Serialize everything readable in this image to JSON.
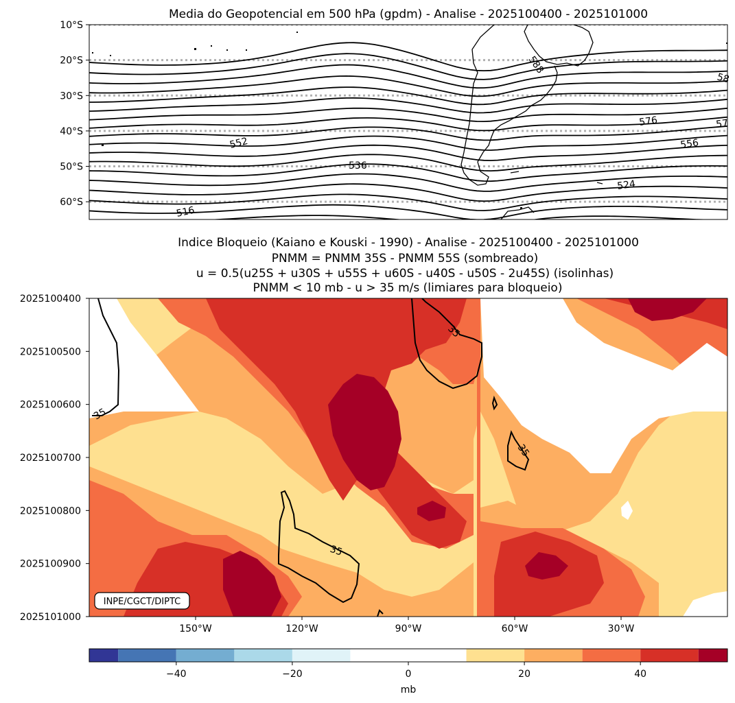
{
  "chart_data": [
    {
      "type": "contour-map",
      "title": "Media do Geopotencial em 500 hPa (gpdm) - Analise - 2025100400 - 2025101000",
      "variable": "Geopotencial 500 hPa (gpdm)",
      "lat_ticks": [
        "10°S",
        "20°S",
        "30°S",
        "40°S",
        "50°S",
        "60°S"
      ],
      "lat_values": [
        -10,
        -20,
        -30,
        -40,
        -50,
        -60
      ],
      "lat_range": [
        -65,
        -10
      ],
      "lon_range": [
        -180,
        0
      ],
      "gridlines": "dotted gray at each 10° latitude",
      "contour_interval": 4,
      "contour_range": [
        508,
        588
      ],
      "contour_labels": [
        "588",
        "58",
        "576",
        "57",
        "552",
        "556",
        "536",
        "524",
        "516"
      ]
    },
    {
      "type": "heatmap",
      "title_lines": [
        "Indice Bloqueio (Kaiano e Kouski - 1990) - Analise - 2025100400 - 2025101000",
        "PNMM = PNMM 35S - PNMM 55S (sombreado)",
        "u = 0.5(u25S + u30S + u55S + u60S - u40S - u50S - 2u45S) (isolinhas)",
        "PNMM < 10 mb - u > 35 m/s (limiares para bloqueio)"
      ],
      "y_ticks": [
        "2025100400",
        "2025100500",
        "2025100600",
        "2025100700",
        "2025100800",
        "2025100900",
        "2025101000"
      ],
      "x_ticks": [
        "150°W",
        "120°W",
        "90°W",
        "60°W",
        "30°W"
      ],
      "x_tick_values": [
        -150,
        -120,
        -90,
        -60,
        -30
      ],
      "x_range": [
        -180,
        0
      ],
      "contour_value": 35,
      "contour_labels": [
        "35",
        "35",
        "35",
        "35"
      ],
      "credit": "INPE/CGCT/DIPTC"
    },
    {
      "type": "colorbar",
      "label": "mb",
      "boundaries": [
        -55,
        -50,
        -40,
        -30,
        -20,
        -10,
        10,
        20,
        30,
        40,
        50,
        55
      ],
      "colors": [
        "#313695",
        "#4575b4",
        "#74add1",
        "#abd9e9",
        "#e0f3f8",
        "#ffffff",
        "#fee090",
        "#fdae61",
        "#f46d43",
        "#d73027",
        "#a50026"
      ],
      "ticks": [
        "−40",
        "−20",
        "0",
        "20",
        "40"
      ],
      "tick_values": [
        -40,
        -20,
        0,
        20,
        40
      ]
    }
  ]
}
